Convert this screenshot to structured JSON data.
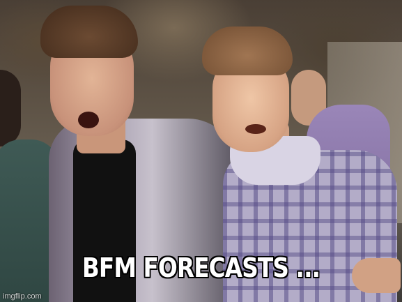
{
  "meme": {
    "caption": "BFM FORECASTS ...",
    "watermark": "imgflip.com"
  },
  "colors": {
    "caption_fill": "#ffffff",
    "caption_outline": "#000000"
  }
}
